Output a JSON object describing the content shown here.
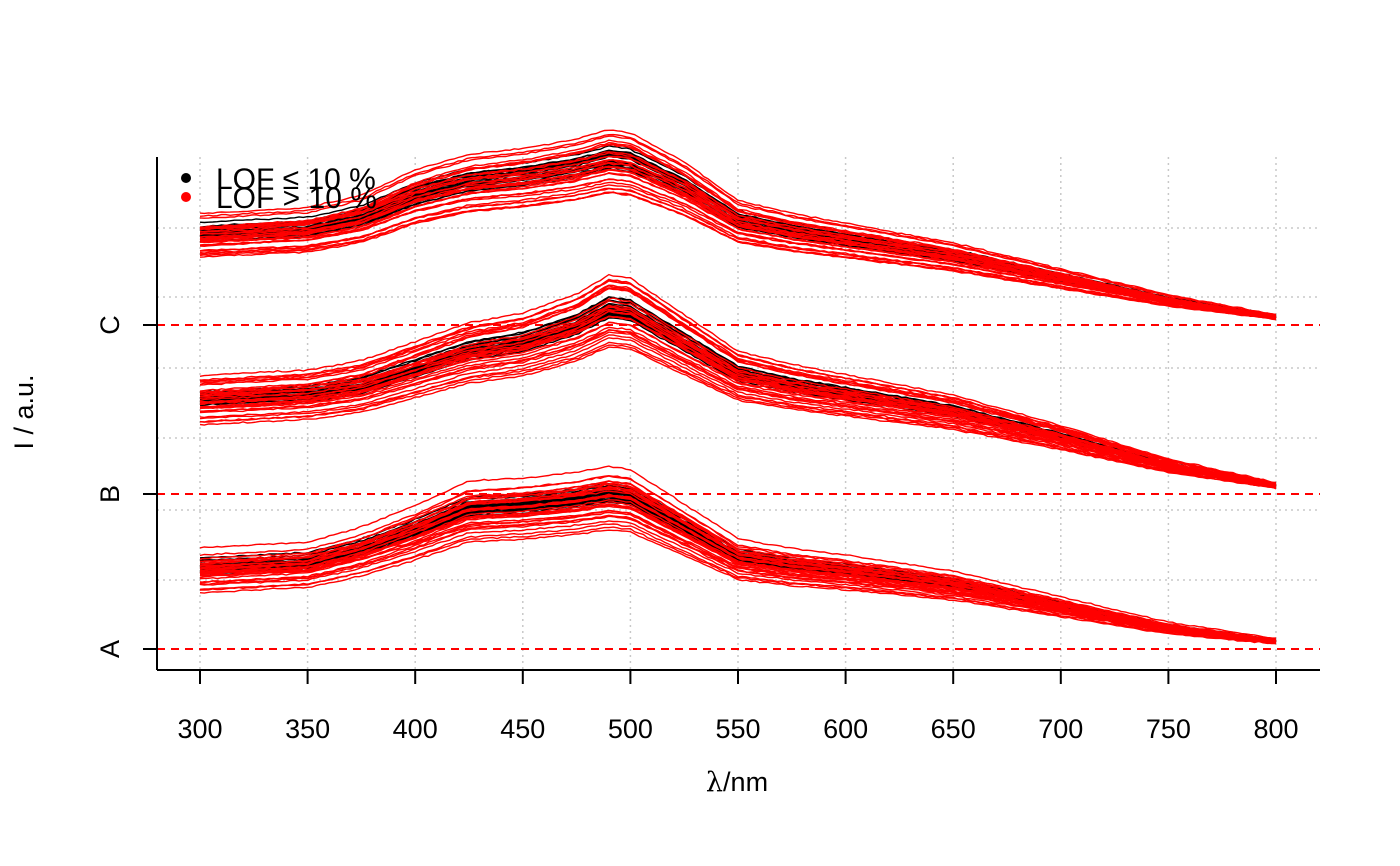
{
  "chart_data": {
    "type": "line",
    "title": "",
    "xlabel_symbol": "λ",
    "xlabel_unit": "/nm",
    "ylabel": "I / a.u.",
    "xlim": [
      300,
      800
    ],
    "x_ticks": [
      300,
      350,
      400,
      450,
      500,
      550,
      600,
      650,
      700,
      750,
      800
    ],
    "y_ticks": [
      {
        "label": "A",
        "offset": 0
      },
      {
        "label": "B",
        "offset": 1
      },
      {
        "label": "C",
        "offset": 2
      }
    ],
    "grid": true,
    "legend_placement": "top-left",
    "legend": [
      {
        "label": "LOF ≤ 10 %",
        "color": "#000000"
      },
      {
        "label": "LOF > 10 %",
        "color": "#ff0000"
      }
    ],
    "colors": {
      "low_lof": "#000000",
      "high_lof": "#ff0000",
      "baseline": "#ff0000",
      "grid": "#c8c8c8"
    },
    "series": [
      {
        "group": "A",
        "x": [
          300,
          350,
          375,
          400,
          425,
          450,
          475,
          490,
          500,
          525,
          550,
          575,
          600,
          650,
          700,
          750,
          800
        ],
        "mean": [
          0.3,
          0.32,
          0.37,
          0.44,
          0.52,
          0.53,
          0.55,
          0.57,
          0.56,
          0.45,
          0.34,
          0.31,
          0.29,
          0.24,
          0.16,
          0.08,
          0.03
        ],
        "low_lof_count": 26,
        "high_lof_count": 32
      },
      {
        "group": "B",
        "x": [
          300,
          350,
          375,
          400,
          425,
          450,
          475,
          490,
          500,
          525,
          550,
          575,
          600,
          650,
          700,
          750,
          800
        ],
        "mean": [
          0.33,
          0.35,
          0.38,
          0.44,
          0.5,
          0.53,
          0.59,
          0.65,
          0.64,
          0.53,
          0.42,
          0.38,
          0.35,
          0.29,
          0.2,
          0.1,
          0.03
        ],
        "low_lof_count": 26,
        "high_lof_count": 32
      },
      {
        "group": "C",
        "x": [
          300,
          350,
          375,
          400,
          425,
          450,
          475,
          490,
          500,
          525,
          550,
          575,
          600,
          650,
          700,
          750,
          800
        ],
        "mean": [
          0.33,
          0.35,
          0.39,
          0.47,
          0.52,
          0.54,
          0.57,
          0.6,
          0.59,
          0.5,
          0.38,
          0.34,
          0.31,
          0.25,
          0.17,
          0.09,
          0.03
        ],
        "low_lof_count": 26,
        "high_lof_count": 32
      }
    ]
  }
}
